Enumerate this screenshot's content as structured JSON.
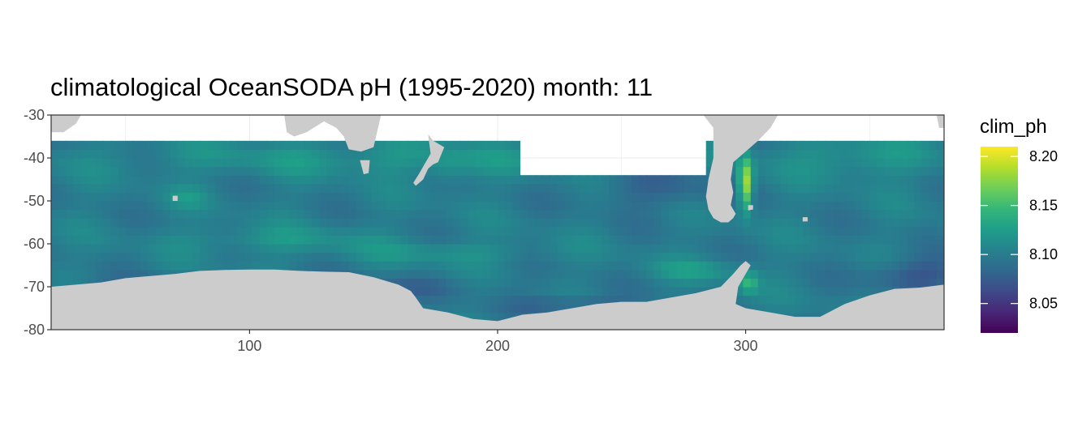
{
  "chart_data": {
    "type": "heatmap",
    "title": "climatological OceanSODA pH (1995-2020) month: 11",
    "xlabel": "",
    "ylabel": "",
    "x_ticks": [
      100,
      200,
      300
    ],
    "y_ticks": [
      -30,
      -40,
      -50,
      -60,
      -70,
      -80
    ],
    "xlim": [
      20,
      380
    ],
    "ylim": [
      -80,
      -30
    ],
    "grid": true,
    "legend": {
      "title": "clim_ph",
      "position": "right",
      "breaks": [
        8.2,
        8.15,
        8.1,
        8.05
      ],
      "break_labels": [
        "8.20",
        "8.15",
        "8.10",
        "8.05"
      ],
      "range": [
        8.02,
        8.21
      ],
      "colormap": "viridis"
    },
    "data_extent": {
      "lat_north": -36,
      "gap_lon": [
        210,
        284
      ],
      "gap_lat_north": -44
    },
    "value_regions": [
      {
        "description": "Typical Southern Ocean band",
        "value": 8.1
      },
      {
        "description": "Patagonian shelf maximum near lon 300, lat -45",
        "value": 8.2
      },
      {
        "description": "Coastal Antarctic minimum",
        "value": 8.03
      }
    ],
    "colors": {
      "land": "#cccccc",
      "panel_border": "#333333",
      "grid": "#ebebeb",
      "viridis": [
        "#440154",
        "#482777",
        "#3e4a89",
        "#31688e",
        "#26828e",
        "#1f9e89",
        "#35b779",
        "#6ece58",
        "#b5de2b",
        "#fde725"
      ]
    }
  }
}
